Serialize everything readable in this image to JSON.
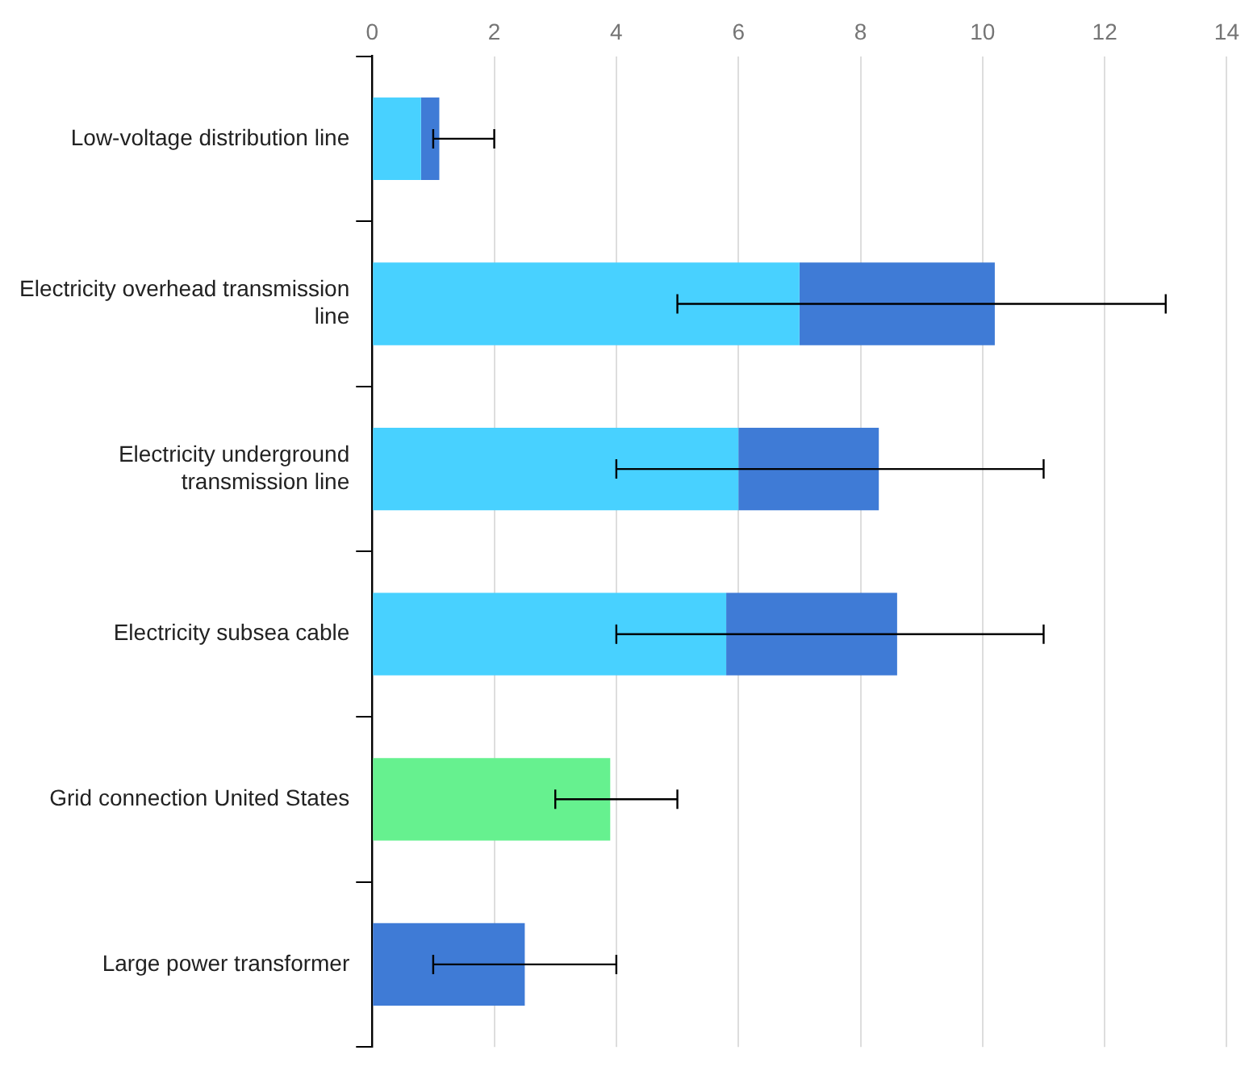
{
  "chart_data": {
    "type": "bar",
    "orientation": "horizontal",
    "stacked": true,
    "categories": [
      "Low-voltage distribution line",
      "Electricity overhead transmission line",
      "Electricity underground transmission line",
      "Electricity subsea cable",
      "Grid connection United States",
      "Large power transformer"
    ],
    "series": [
      {
        "color": "#48d1ff",
        "values": [
          0.8,
          7.0,
          6.0,
          5.8,
          null,
          null
        ]
      },
      {
        "color": "#3f7bd6",
        "values": [
          0.3,
          3.2,
          2.3,
          2.8,
          null,
          2.5
        ],
        "errors": [
          [
            1.0,
            2.0
          ],
          [
            5.0,
            13.0
          ],
          [
            4.0,
            11.0
          ],
          [
            4.0,
            11.0
          ],
          null,
          [
            1.0,
            4.0
          ]
        ]
      },
      {
        "color": "#66f18f",
        "values": [
          null,
          null,
          null,
          null,
          3.9,
          null
        ],
        "errors": [
          null,
          null,
          null,
          null,
          [
            3.0,
            5.0
          ],
          null
        ]
      }
    ],
    "xlim": [
      0,
      14
    ],
    "xticks": [
      0,
      2,
      4,
      6,
      8,
      10,
      12,
      14
    ],
    "grid": "x",
    "legend": false
  }
}
